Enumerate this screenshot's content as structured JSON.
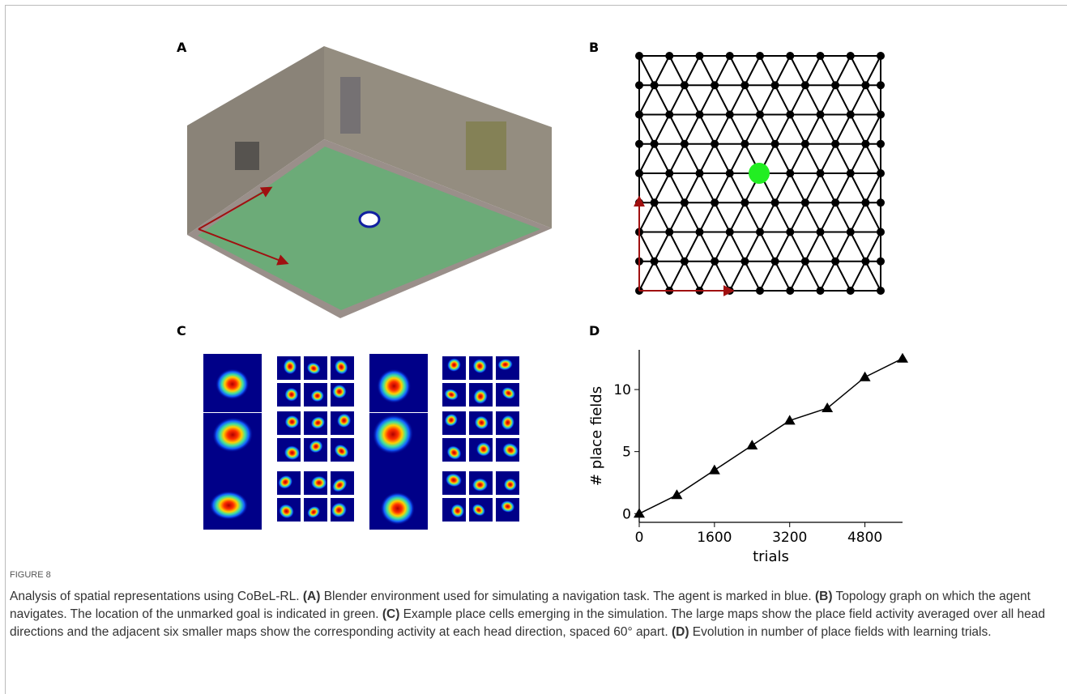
{
  "panels": {
    "a": "A",
    "b": "B",
    "c": "C",
    "d": "D"
  },
  "chart_data": {
    "type": "line",
    "x": [
      0,
      800,
      1600,
      2400,
      3200,
      4000,
      4800,
      5600
    ],
    "values": [
      0,
      1.5,
      3.5,
      5.5,
      7.5,
      8.5,
      11,
      12.5
    ],
    "color": "#000000",
    "marker": "triangle",
    "xlim": [
      0,
      5600
    ],
    "ylim": [
      -0.7,
      13.2
    ],
    "xticks": [
      0,
      1600,
      3200,
      4800
    ],
    "yticks": [
      0,
      5,
      10
    ],
    "x_label": "trials",
    "y_label": "# place fields"
  },
  "caption": {
    "label": "FIGURE 8",
    "segments": [
      {
        "text": "Analysis of spatial representations using CoBeL-RL. ",
        "bold": false
      },
      {
        "text": "(A)",
        "bold": true
      },
      {
        "text": " Blender environment used for simulating a navigation task. The agent is marked in blue. ",
        "bold": false
      },
      {
        "text": "(B)",
        "bold": true
      },
      {
        "text": " Topology graph on which the agent navigates. The location of the unmarked goal is indicated in green. ",
        "bold": false
      },
      {
        "text": "(C)",
        "bold": true
      },
      {
        "text": " Example place cells emerging in the simulation. The large maps show the place field activity averaged over all head directions and the adjacent six smaller maps show the corresponding activity at each head direction, spaced 60° apart. ",
        "bold": false
      },
      {
        "text": "(D)",
        "bold": true
      },
      {
        "text": " Evolution in number of place fields with learning trials.",
        "bold": false
      }
    ]
  }
}
